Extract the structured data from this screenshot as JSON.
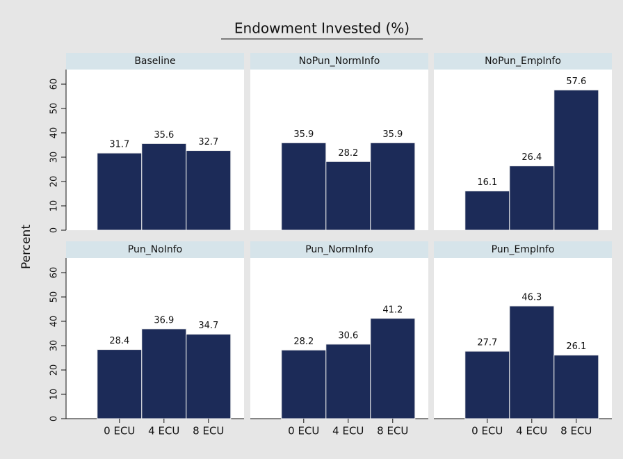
{
  "chart_data": {
    "type": "bar",
    "title": "Endowment Invested (%)",
    "ylabel": "Percent",
    "categories": [
      "0 ECU",
      "4 ECU",
      "8 ECU"
    ],
    "color": "#1c2b58",
    "ylim": [
      0,
      66
    ],
    "yticks": [
      0,
      10,
      20,
      30,
      40,
      50,
      60
    ],
    "panels": [
      {
        "title": "Baseline",
        "values": [
          31.7,
          35.6,
          32.7
        ]
      },
      {
        "title": "NoPun_NormInfo",
        "values": [
          35.9,
          28.2,
          35.9
        ]
      },
      {
        "title": "NoPun_EmpInfo",
        "values": [
          16.1,
          26.4,
          57.6
        ]
      },
      {
        "title": "Pun_NoInfo",
        "values": [
          28.4,
          36.9,
          34.7
        ]
      },
      {
        "title": "Pun_NormInfo",
        "values": [
          28.2,
          30.6,
          41.2
        ]
      },
      {
        "title": "Pun_EmpInfo",
        "values": [
          27.7,
          46.3,
          26.1
        ]
      }
    ]
  }
}
